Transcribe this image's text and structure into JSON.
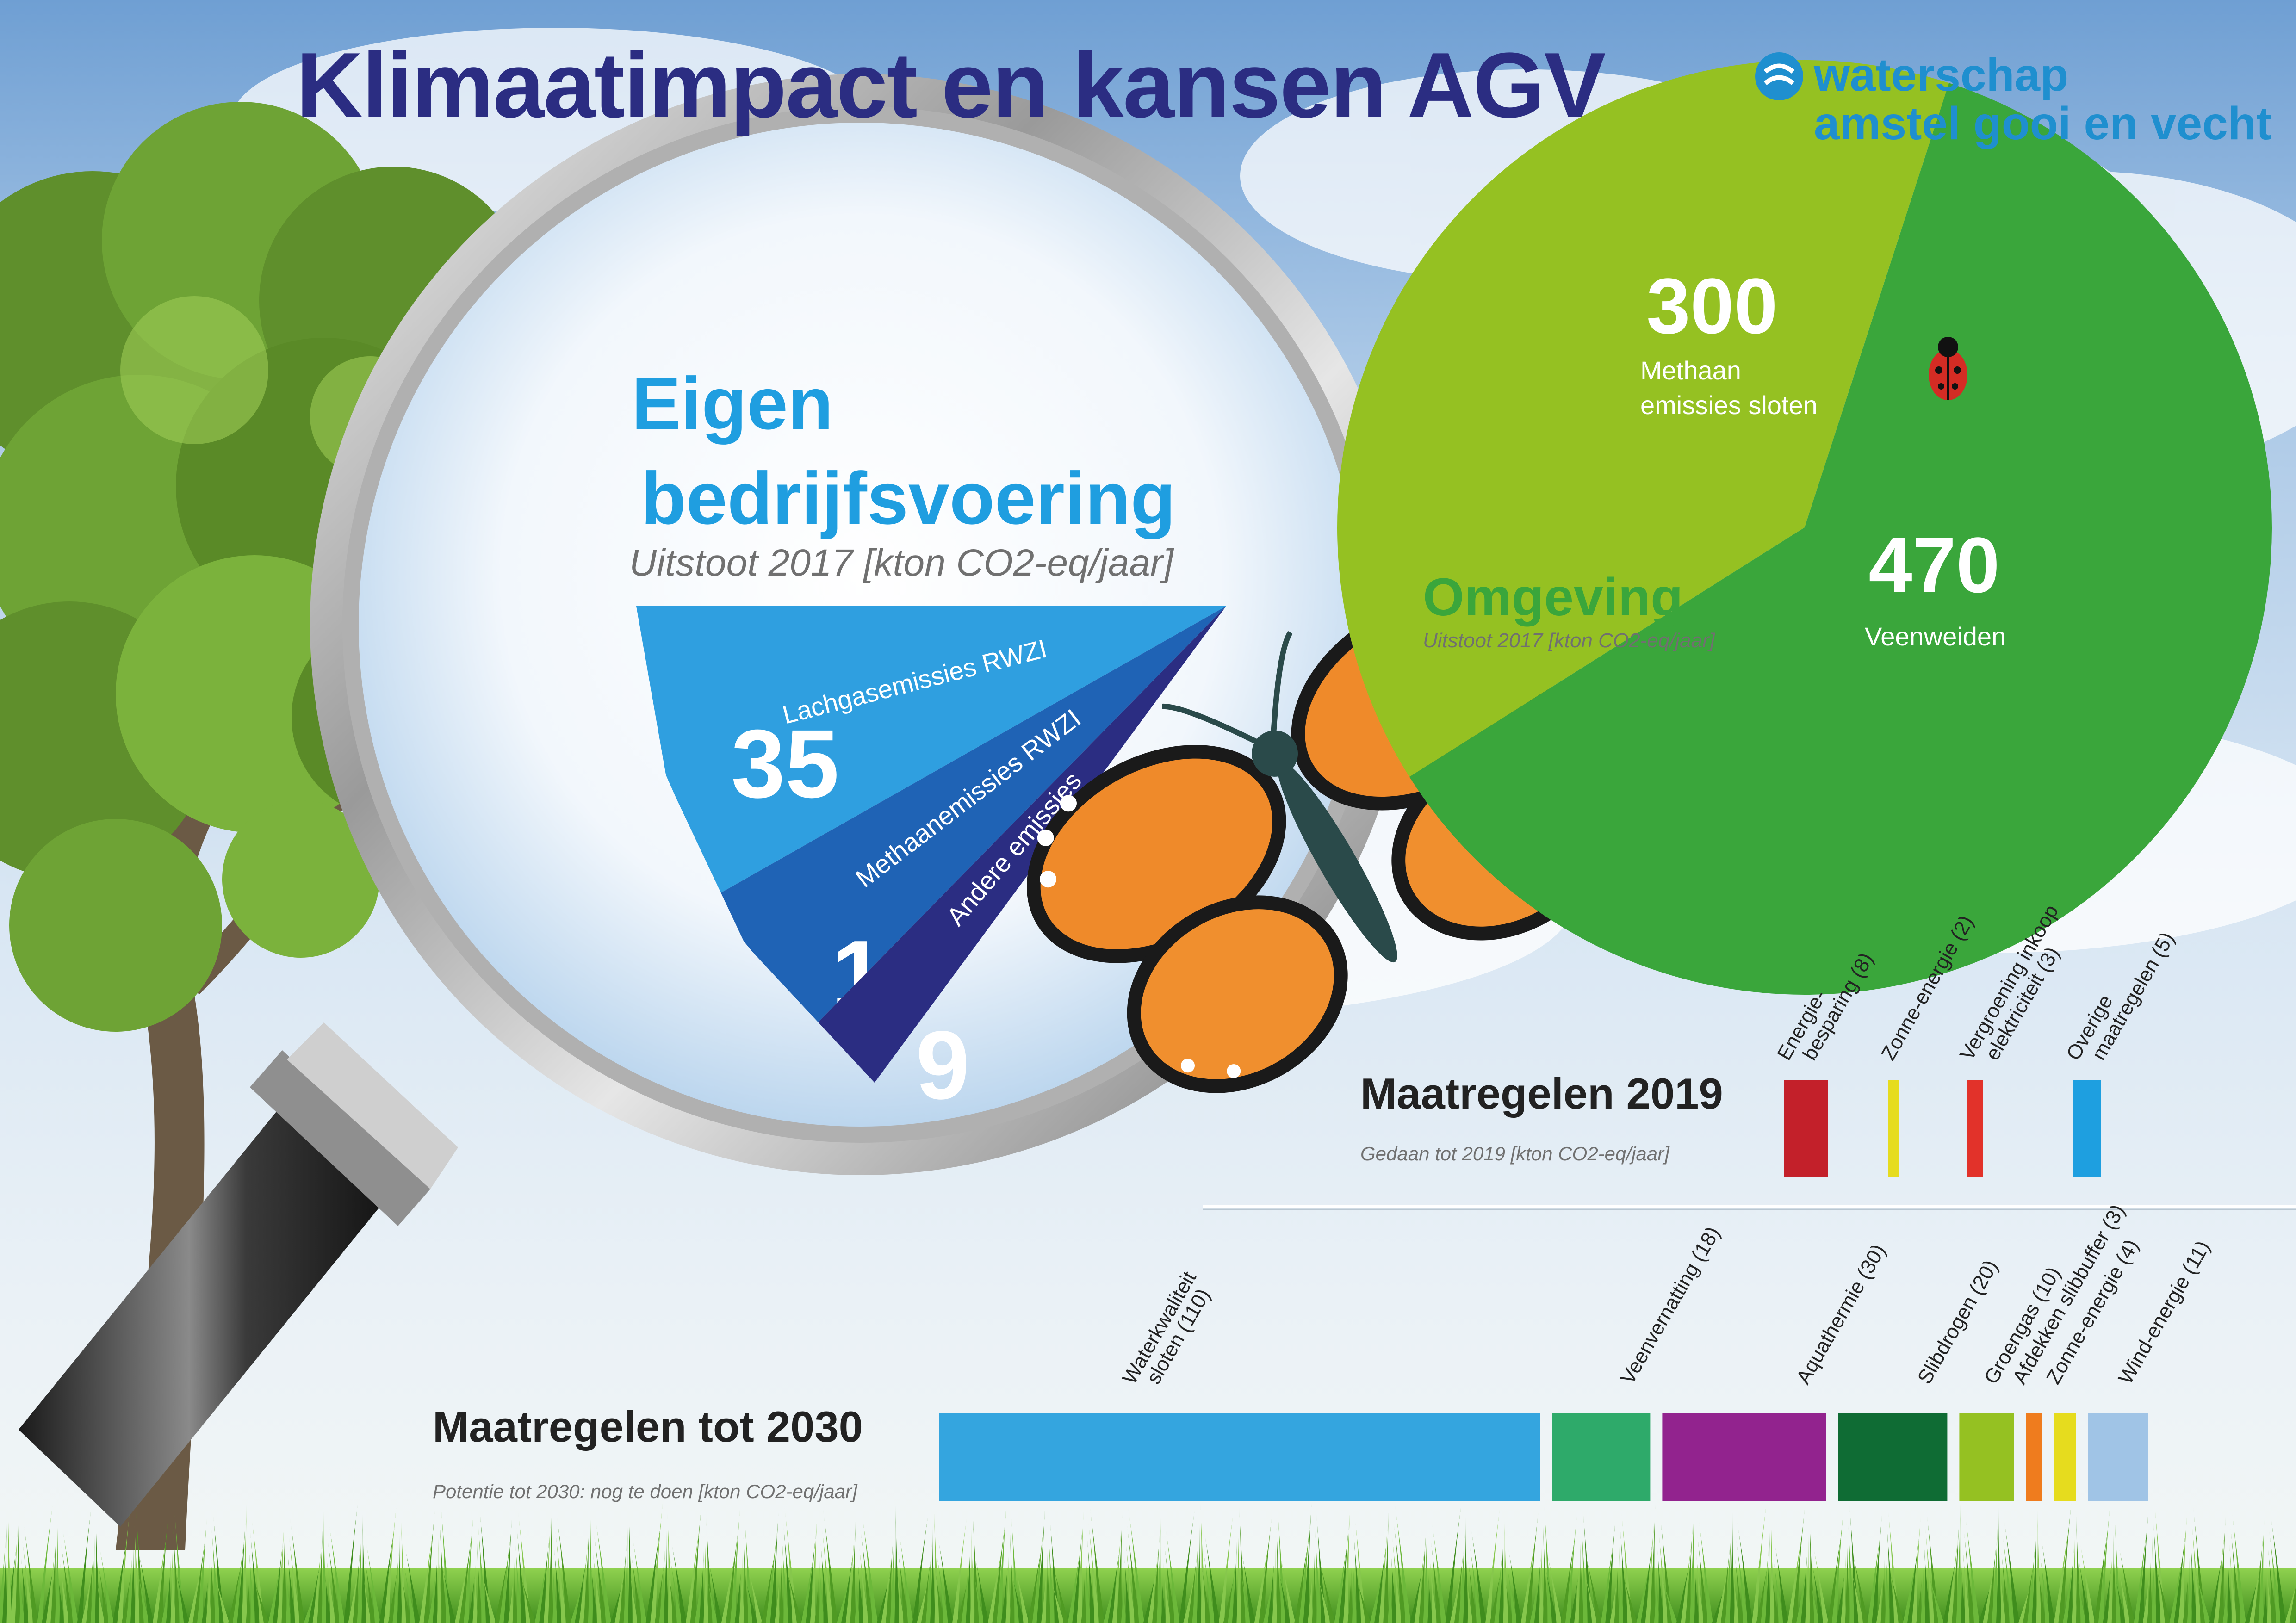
{
  "title": "Klimaatimpact en kansen AGV",
  "brand": {
    "line1": "waterschap",
    "line2": "amstel gooi en vecht",
    "color": "#1f8fcf"
  },
  "eigen": {
    "heading_line1": "Eigen",
    "heading_line2": "bedrijfsvoering",
    "subtitle": "Uitstoot 2017 [kton CO2-eq/jaar]"
  },
  "omgeving": {
    "heading": "Omgeving",
    "subtitle": "Uitstoot 2017 [kton CO2-eq/jaar]"
  },
  "maatregelen_2019": {
    "heading": "Maatregelen 2019",
    "subtitle": "Gedaan tot 2019 [kton CO2-eq/jaar]"
  },
  "maatregelen_2030": {
    "heading": "Maatregelen tot 2030",
    "subtitle": "Potentie tot 2030: nog te doen [kton CO2-eq/jaar]"
  },
  "chart_data": [
    {
      "type": "pie",
      "title": "Eigen bedrijfsvoering",
      "categories": [
        "Lachgasemissies RWZI",
        "Methaanemissies RWZI",
        "Andere emissies"
      ],
      "values": [
        35,
        18,
        9
      ],
      "value_labels": [
        "35",
        "18",
        "9"
      ],
      "colors": [
        "#2f9fe0",
        "#1f63b5",
        "#2b2d82"
      ]
    },
    {
      "type": "pie",
      "title": "Omgeving",
      "categories": [
        "Methaan emissies sloten",
        "Veenweiden"
      ],
      "value_labels": [
        "300",
        "470"
      ],
      "category_lines": [
        [
          "Methaan",
          "emissies sloten"
        ],
        [
          "Veenweiden"
        ]
      ],
      "values": [
        300,
        470
      ],
      "colors": [
        "#95c122",
        "#3aa63b"
      ]
    },
    {
      "type": "bar",
      "title": "Maatregelen 2019",
      "categories": [
        "Energie-besparing (8)",
        "Zonne-energie (2)",
        "Vergroening inkoop elektriciteit (3)",
        "Overige maatregelen (5)"
      ],
      "category_lines": [
        [
          "Energie-",
          "besparing (8)"
        ],
        [
          "Zonne-energie (2)"
        ],
        [
          "Vergroening inkoop",
          "elektriciteit (3)"
        ],
        [
          "Overige",
          "maatregelen (5)"
        ]
      ],
      "values": [
        8,
        2,
        3,
        5
      ],
      "colors": [
        "#c3202a",
        "#e6dc1e",
        "#e2322a",
        "#1e9fe0"
      ]
    },
    {
      "type": "bar",
      "title": "Maatregelen tot 2030",
      "categories": [
        "Waterkwaliteit sloten (110)",
        "Veenvernatting (18)",
        "Aquathermie (30)",
        "Slibdrogen (20)",
        "Groengas (10)",
        "Afdekken slibbuffer (3)",
        "Zonne-energie (4)",
        "Wind-energie (11)"
      ],
      "category_lines": [
        [
          "Waterkwaliteit",
          "sloten (110)"
        ],
        [
          "Veenvernatting (18)"
        ],
        [
          "Aquathermie (30)"
        ],
        [
          "Slibdrogen (20)"
        ],
        [
          "Groengas (10)"
        ],
        [
          "Afdekken slibbuffer (3)"
        ],
        [
          "Zonne-energie (4)"
        ],
        [
          "Wind-energie (11)"
        ]
      ],
      "values": [
        110,
        18,
        30,
        20,
        10,
        3,
        4,
        11
      ],
      "colors": [
        "#34a5df",
        "#2eaa6a",
        "#92238e",
        "#0f6c34",
        "#95c122",
        "#ef7c1e",
        "#e6dc1e",
        "#a0c4e6"
      ]
    }
  ]
}
